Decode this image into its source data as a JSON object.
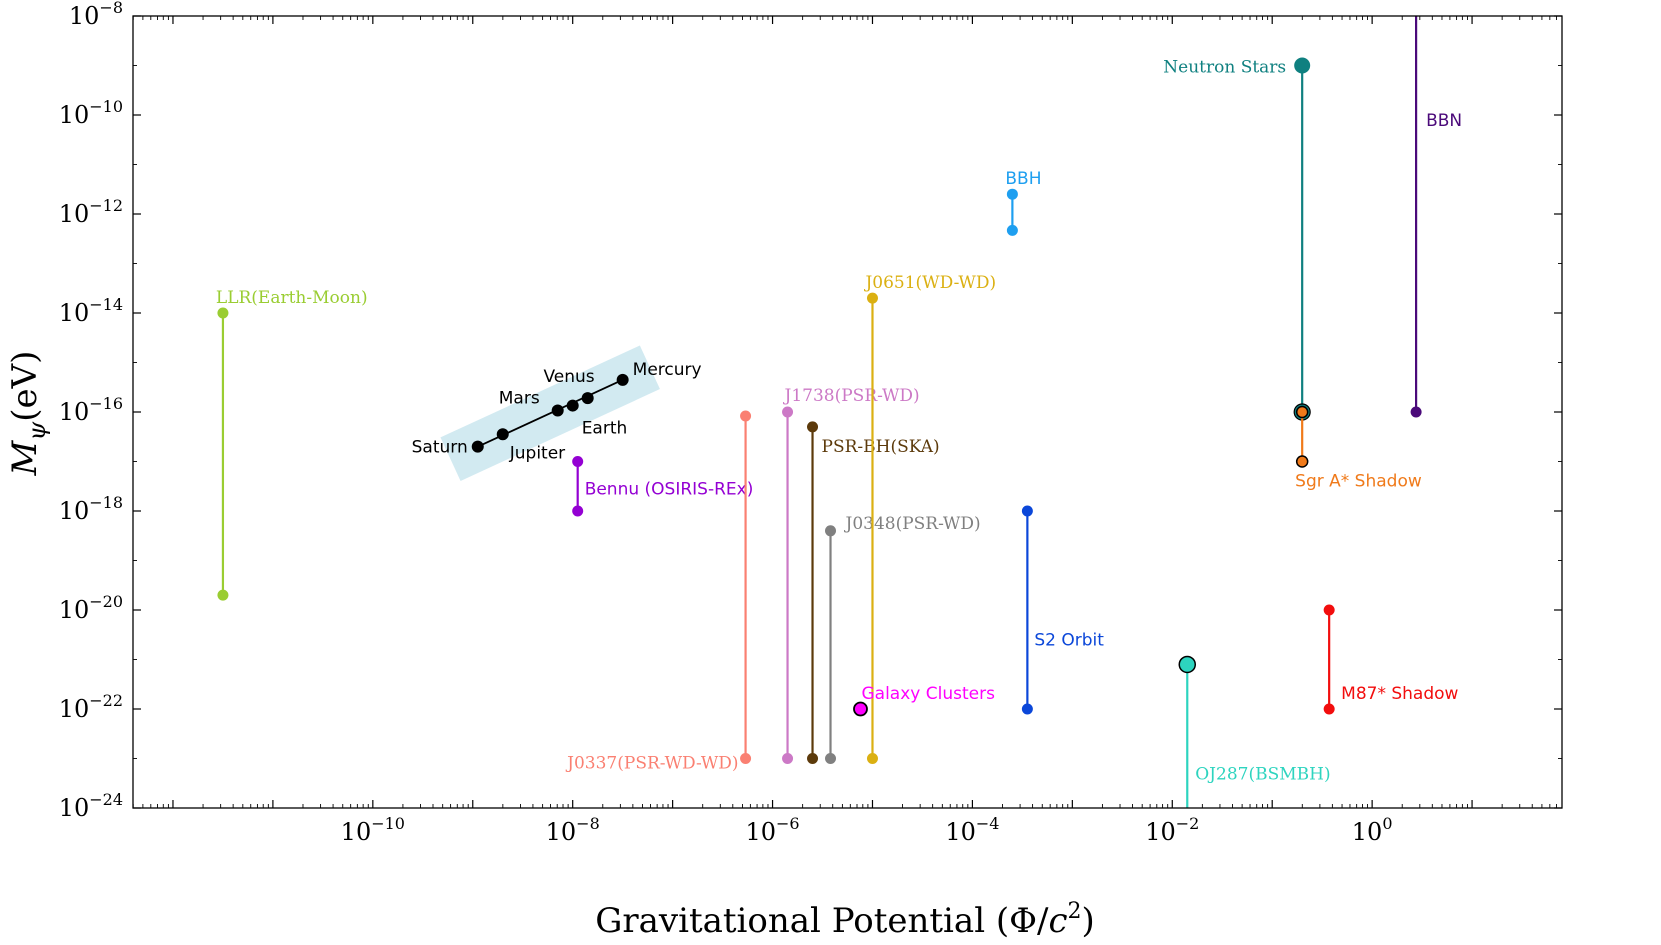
{
  "chart_data": {
    "type": "scatter",
    "xlabel": "Gravitational Potential (Φ/c²)",
    "xlabel_text": "Gravitational Potential (Φ/",
    "xlabel_c": "c",
    "xlabel_sup": "2",
    "xlabel_close": ")",
    "ylabel_main": "M",
    "ylabel_sub": "ψ",
    "ylabel_unit": "(eV)",
    "x_scale": "log",
    "y_scale": "log",
    "xlim_log10": [
      -12.4,
      1.9
    ],
    "ylim_log10": [
      -24,
      -8
    ],
    "x_ticks": [
      {
        "base": "10",
        "exp": "−10",
        "log": -10
      },
      {
        "base": "10",
        "exp": "−8",
        "log": -8
      },
      {
        "base": "10",
        "exp": "−6",
        "log": -6
      },
      {
        "base": "10",
        "exp": "−4",
        "log": -4
      },
      {
        "base": "10",
        "exp": "−2",
        "log": -2
      },
      {
        "base": "10",
        "exp": "0",
        "log": 0
      }
    ],
    "y_ticks": [
      {
        "base": "10",
        "exp": "−8",
        "log": -8
      },
      {
        "base": "10",
        "exp": "−10",
        "log": -10
      },
      {
        "base": "10",
        "exp": "−12",
        "log": -12
      },
      {
        "base": "10",
        "exp": "−14",
        "log": -14
      },
      {
        "base": "10",
        "exp": "−16",
        "log": -16
      },
      {
        "base": "10",
        "exp": "−18",
        "log": -18
      },
      {
        "base": "10",
        "exp": "−20",
        "log": -20
      },
      {
        "base": "10",
        "exp": "−22",
        "log": -22
      },
      {
        "base": "10",
        "exp": "−24",
        "log": -24
      }
    ],
    "planets": {
      "band_color": "#add8e6",
      "color": "#000000",
      "points": [
        {
          "name": "Saturn",
          "x": -8.95,
          "y": -16.7,
          "label_pos": "left"
        },
        {
          "name": "Jupiter",
          "x": -8.7,
          "y": -16.45,
          "label_pos": "below-right"
        },
        {
          "name": "Mars",
          "x": -8.15,
          "y": -15.97,
          "label_pos": "above-left"
        },
        {
          "name": "Earth",
          "x": -8.0,
          "y": -15.87,
          "label_pos": "below-right"
        },
        {
          "name": "Venus",
          "x": -7.85,
          "y": -15.72,
          "label_pos": "above-left"
        },
        {
          "name": "Mercury",
          "x": -7.5,
          "y": -15.35,
          "label_pos": "above-right"
        }
      ]
    },
    "series": [
      {
        "name": "LLR(Earth-Moon)",
        "color": "#9acd32",
        "x": -11.5,
        "y": [
          -14.0,
          -19.7
        ],
        "label": "LLR(Earth-Moon)",
        "label_pos": "top",
        "font": "serif"
      },
      {
        "name": "Bennu (OSIRIS-REx)",
        "color": "#9400d3",
        "x": -7.95,
        "y": [
          -17.0,
          -18.0
        ],
        "label": "Bennu (OSIRIS-REx)",
        "label_pos": "right-mid",
        "font": "sans"
      },
      {
        "name": "J0337(PSR-WD-WD)",
        "color": "#fa8072",
        "x": -6.27,
        "y": [
          -16.08,
          -23.0
        ],
        "label": "J0337(PSR-WD-WD)",
        "label_pos": "left-bottom",
        "font": "serif"
      },
      {
        "name": "J1738(PSR-WD)",
        "color": "#cc79c6",
        "x": -5.85,
        "y": [
          -16.0,
          -23.0
        ],
        "label": "J1738(PSR-WD)",
        "label_pos": "top-right",
        "font": "serif"
      },
      {
        "name": "PSR-BH(SKA)",
        "color": "#5c3a0b",
        "x": -5.6,
        "y": [
          -16.3,
          -23.0
        ],
        "label": "PSR-BH(SKA)",
        "label_pos": "right-top",
        "font": "serif"
      },
      {
        "name": "J0348(PSR-WD)",
        "color": "#808080",
        "x": -5.42,
        "y": [
          -18.4,
          -23.0
        ],
        "label": "J0348(PSR-WD)",
        "label_pos": "right-top",
        "font": "serif"
      },
      {
        "name": "J0651(WD-WD)",
        "color": "#dbb012",
        "x": -5.0,
        "y": [
          -13.7,
          -23.0
        ],
        "label": "J0651(WD-WD)",
        "label_pos": "top",
        "font": "serif"
      },
      {
        "name": "BBH",
        "color": "#1e9ff0",
        "x": -3.6,
        "y": [
          -11.6,
          -12.33
        ],
        "label": "BBH",
        "label_pos": "top",
        "font": "sans"
      },
      {
        "name": "S2 Orbit",
        "color": "#0b47d9",
        "x": -3.45,
        "y": [
          -18.0,
          -22.0
        ],
        "label": "S2 Orbit",
        "label_pos": "right-mid",
        "font": "sans"
      },
      {
        "name": "OJ287(BSMBH)",
        "color": "#2dd4bf",
        "x": -1.85,
        "y": [
          -21.1,
          -24.0
        ],
        "label": "OJ287(BSMBH)",
        "label_pos": "right-bottom",
        "font": "serif",
        "big_marker": true
      },
      {
        "name": "Neutron Stars",
        "color": "#0f8080",
        "x": -0.7,
        "y": [
          -9.0,
          -16.0
        ],
        "label": "Neutron Stars",
        "label_pos": "left-top",
        "font": "serif",
        "big_marker": true
      },
      {
        "name": "Sgr A* Shadow",
        "color": "#f07a1a",
        "x": -0.7,
        "y": [
          -16.0,
          -17.0
        ],
        "label": "Sgr A* Shadow",
        "label_pos": "bottom",
        "font": "sans",
        "edge_markers": true
      },
      {
        "name": "M87* Shadow",
        "color": "#f20d0d",
        "x": -0.43,
        "y": [
          -20.0,
          -22.0
        ],
        "label": "M87* Shadow",
        "label_pos": "right-bottom",
        "font": "sans"
      },
      {
        "name": "BBN",
        "color": "#4b0a7a",
        "x": 0.44,
        "y": [
          -8.0,
          -16.0
        ],
        "label": "BBN",
        "label_pos": "right-mid",
        "font": "sans",
        "no_top_marker": true
      }
    ],
    "singles": [
      {
        "name": "Galaxy Clusters",
        "color": "#ff00ff",
        "x": -5.12,
        "y": -22.0,
        "label": "Galaxy Clusters",
        "font": "sans"
      }
    ]
  }
}
